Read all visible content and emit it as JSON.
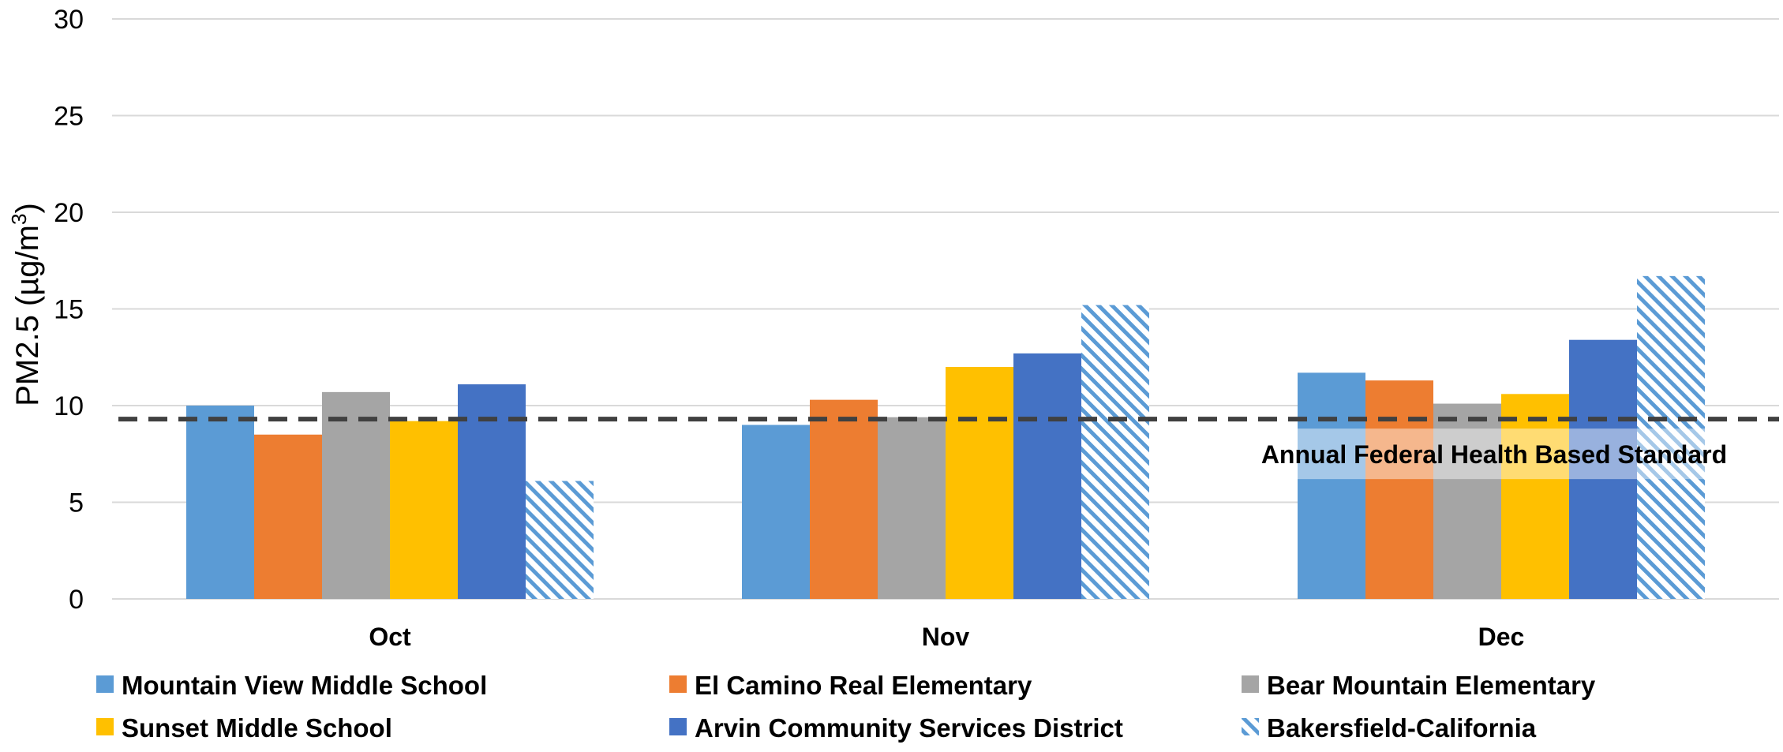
{
  "chart_data": {
    "type": "bar",
    "title": "",
    "xlabel": "",
    "ylabel": "PM2.5 (µg/m",
    "ylabel_superscript": "3",
    "ylabel_close": ")",
    "ylim": [
      0,
      30
    ],
    "yticks": [
      0,
      5,
      10,
      15,
      20,
      25,
      30
    ],
    "grid": true,
    "legend_position": "bottom",
    "categories": [
      "Oct",
      "Nov",
      "Dec"
    ],
    "series": [
      {
        "name": "Mountain View Middle School",
        "color": "#5B9BD5",
        "pattern": "solid",
        "values": [
          10.0,
          9.0,
          11.7
        ]
      },
      {
        "name": "El Camino Real Elementary",
        "color": "#ED7D31",
        "pattern": "solid",
        "values": [
          8.5,
          10.3,
          11.3
        ]
      },
      {
        "name": "Bear Mountain Elementary",
        "color": "#A5A5A5",
        "pattern": "solid",
        "values": [
          10.7,
          9.4,
          10.1
        ]
      },
      {
        "name": "Sunset Middle School",
        "color": "#FFC000",
        "pattern": "solid",
        "values": [
          9.2,
          12.0,
          10.6
        ]
      },
      {
        "name": "Arvin Community Services District",
        "color": "#4472C4",
        "pattern": "solid",
        "values": [
          11.1,
          12.7,
          13.4
        ]
      },
      {
        "name": "Bakersfield-California",
        "color": "#5B9BD5",
        "pattern": "hatched",
        "values": [
          6.1,
          15.2,
          16.7
        ]
      }
    ],
    "reference_line": {
      "label": "Annual Federal Health Based Standard",
      "value": 9.3,
      "style": "dashed",
      "color": "#404040"
    }
  }
}
